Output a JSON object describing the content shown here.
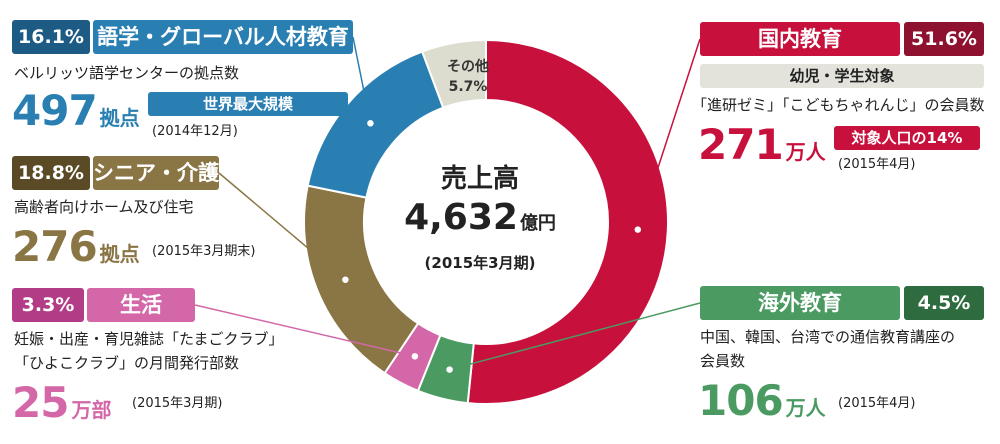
{
  "chart_data": {
    "type": "pie",
    "variant": "donut",
    "center": {
      "title": "売上高",
      "total_value": "4,632",
      "total_unit": "億円",
      "period": "(2015年3月期)"
    },
    "slices": [
      {
        "label": "国内教育",
        "value": 51.6,
        "pct_label": "51.6%",
        "color": "#c8103c"
      },
      {
        "label": "海外教育",
        "value": 4.5,
        "pct_label": "4.5%",
        "color": "#4b9a62"
      },
      {
        "label": "生活",
        "value": 3.3,
        "pct_label": "3.3%",
        "color": "#d467a8"
      },
      {
        "label": "シニア・介護",
        "value": 18.8,
        "pct_label": "18.8%",
        "color": "#8a7645"
      },
      {
        "label": "語学・グローバル人材教育",
        "value": 16.1,
        "pct_label": "16.1%",
        "color": "#2a7fb2"
      },
      {
        "label": "その他",
        "value": 5.7,
        "pct_label": "5.7%",
        "color": "#ddddcf"
      }
    ]
  },
  "colors": {
    "domestic_dark": "#8e1230",
    "overseas_dark": "#2e6b3f",
    "life_dark": "#b23d86",
    "senior_dark": "#5a4a26",
    "language_dark": "#1d5b84",
    "band_gray": "#e3e3dc"
  },
  "callouts": {
    "language": {
      "pct": "16.1%",
      "name": "語学・グローバル人材教育",
      "desc": "ベルリッツ語学センターの拠点数",
      "number": "497",
      "unit": "拠点",
      "badge": "世界最大規模",
      "date": "(2014年12月)"
    },
    "senior": {
      "pct": "18.8%",
      "name": "シニア・介護",
      "desc": "高齢者向けホーム及び住宅",
      "number": "276",
      "unit": "拠点",
      "date": "(2015年3月期末)"
    },
    "life": {
      "pct": "3.3%",
      "name": "生活",
      "desc1": "妊娠・出産・育児雑誌「たまごクラブ」",
      "desc2": "「ひよこクラブ」の月間発行部数",
      "number": "25",
      "unit": "万部",
      "date": "(2015年3月期)"
    },
    "domestic": {
      "pct": "51.6%",
      "name": "国内教育",
      "band": "幼児・学生対象",
      "desc": "「進研ゼミ」「こどもちゃれんじ」の会員数",
      "number": "271",
      "unit": "万人",
      "badge": "対象人口の14%",
      "date": "(2015年4月)"
    },
    "overseas": {
      "pct": "4.5%",
      "name": "海外教育",
      "desc1": "中国、韓国、台湾での通信教育講座の",
      "desc2": "会員数",
      "number": "106",
      "unit": "万人",
      "date": "(2015年4月)"
    },
    "other": {
      "name": "その他",
      "pct": "5.7%"
    }
  }
}
